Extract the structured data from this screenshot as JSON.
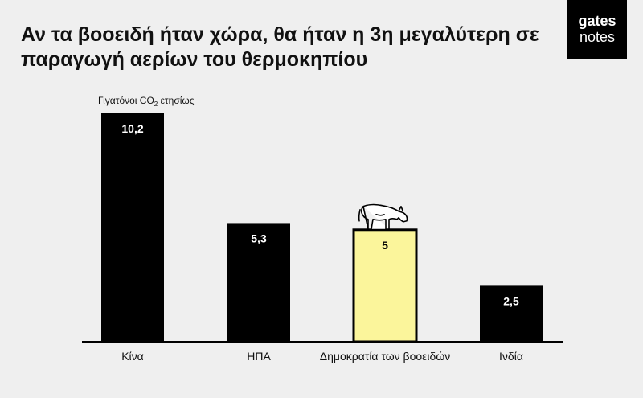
{
  "brand": {
    "line1": "gates",
    "line2": "notes"
  },
  "chart_data": {
    "type": "bar",
    "title": "Αν τα βοοειδή ήταν χώρα, θα ήταν η 3η μεγαλύτερη σε παραγωγή αερίων του θερμοκηπίου",
    "ylabel_main": "Γιγατόνοι CO",
    "ylabel_sub": "2",
    "ylabel_tail": " ετησίως",
    "categories": [
      "Κίνα",
      "ΗΠΑ",
      "Δημοκρατία των βοοειδών",
      "Ινδία"
    ],
    "values": [
      10.2,
      5.3,
      5,
      2.5
    ],
    "value_labels": [
      "10,2",
      "5,3",
      "5",
      "2,5"
    ],
    "highlight_index": 2,
    "ylim": [
      0,
      10.2
    ],
    "colors": {
      "bar": "#000000",
      "highlight": "#fbf59b",
      "value_text": "#ffffff",
      "value_text_highlight": "#000000"
    },
    "icon": "cow-icon"
  }
}
